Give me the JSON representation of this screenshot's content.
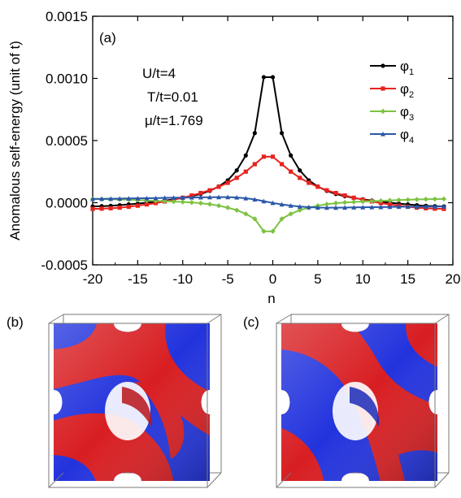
{
  "chart_data": [
    {
      "panel_label": "(a)",
      "type": "line",
      "xlabel": "n",
      "ylabel": "Anomalous self-energy (unit of t)",
      "xlim": [
        -20,
        20
      ],
      "ylim": [
        -0.0005,
        0.0015
      ],
      "xticks": [
        "-20",
        "-15",
        "-10",
        "-5",
        "0",
        "5",
        "10",
        "15",
        "20"
      ],
      "yticks": [
        "-0.0005",
        "0.0000",
        "0.0005",
        "0.0010",
        "0.0015"
      ],
      "ytick_values": [
        -0.0005,
        0.0,
        0.0005,
        0.001,
        0.0015
      ],
      "xtick_values": [
        -20,
        -15,
        -10,
        -5,
        0,
        5,
        10,
        15,
        20
      ],
      "annotations": [
        "U/t=4",
        "T/t=0.01",
        "μ/t=1.769"
      ],
      "grid": false,
      "legend_position": "right",
      "x": [
        -20,
        -19,
        -18,
        -17,
        -16,
        -15,
        -14,
        -13,
        -12,
        -11,
        -10,
        -9,
        -8,
        -7,
        -6,
        -5,
        -4,
        -3,
        -2,
        -1,
        0,
        1,
        2,
        3,
        4,
        5,
        6,
        7,
        8,
        9,
        10,
        11,
        12,
        13,
        14,
        15,
        16,
        17,
        18,
        19
      ],
      "series": [
        {
          "name": "φ1",
          "subscript": "1",
          "color": "#000000",
          "marker": "circle",
          "values": [
            -3e-05,
            -2.8e-05,
            -2.5e-05,
            -2e-05,
            -1.4e-05,
            -7e-06,
            0.0,
            8e-06,
            1.7e-05,
            2.7e-05,
            3.8e-05,
            5.2e-05,
            7e-05,
            9.5e-05,
            0.00013,
            0.00018,
            0.00026,
            0.00038,
            0.00056,
            0.00101,
            0.00101,
            0.00056,
            0.00038,
            0.00026,
            0.00018,
            0.00013,
            9.5e-05,
            7e-05,
            5.2e-05,
            3.8e-05,
            2.7e-05,
            1.7e-05,
            8e-06,
            0.0,
            -7e-06,
            -1.4e-05,
            -2e-05,
            -2.5e-05,
            -2.8e-05,
            -3e-05
          ]
        },
        {
          "name": "φ2",
          "subscript": "2",
          "color": "#e8231f",
          "marker": "square",
          "values": [
            -5e-05,
            -4.8e-05,
            -4.5e-05,
            -4e-05,
            -3.3e-05,
            -2.4e-05,
            -1.4e-05,
            -3e-06,
            1e-05,
            2.4e-05,
            4e-05,
            5.8e-05,
            7.8e-05,
            0.0001,
            0.000128,
            0.00016,
            0.0002,
            0.00025,
            0.00031,
            0.00037,
            0.00037,
            0.00031,
            0.00025,
            0.0002,
            0.00016,
            0.000128,
            0.0001,
            7.8e-05,
            5.8e-05,
            4e-05,
            2.4e-05,
            1e-05,
            -3e-06,
            -1.4e-05,
            -2.4e-05,
            -3.3e-05,
            -4e-05,
            -4.5e-05,
            -4.8e-05,
            -5e-05
          ]
        },
        {
          "name": "φ3",
          "subscript": "3",
          "color": "#7dc242",
          "marker": "diamond",
          "values": [
            3e-05,
            2.9e-05,
            2.8e-05,
            2.6e-05,
            2.4e-05,
            2.1e-05,
            1.8e-05,
            1.5e-05,
            1.2e-05,
            9e-06,
            6e-06,
            2e-06,
            -4e-06,
            -1.2e-05,
            -2.4e-05,
            -4e-05,
            -6e-05,
            -9e-05,
            -0.00013,
            -0.00023,
            -0.00023,
            -0.00013,
            -9e-05,
            -6e-05,
            -4e-05,
            -2.4e-05,
            -1.2e-05,
            -4e-06,
            2e-06,
            6e-06,
            9e-06,
            1.2e-05,
            1.5e-05,
            1.8e-05,
            2.1e-05,
            2.4e-05,
            2.6e-05,
            2.8e-05,
            2.9e-05,
            3e-05
          ]
        },
        {
          "name": "φ4",
          "subscript": "4",
          "color": "#2a57a8",
          "marker": "triangle",
          "values": [
            3e-05,
            3.1e-05,
            3.2e-05,
            3.3e-05,
            3.4e-05,
            3.5e-05,
            3.6e-05,
            3.7e-05,
            3.9e-05,
            4e-05,
            4.1e-05,
            4.2e-05,
            4.3e-05,
            4.4e-05,
            4.5e-05,
            4.5e-05,
            4.2e-05,
            3.6e-05,
            2.6e-05,
            1.2e-05,
            -2e-06,
            -1.4e-05,
            -2.4e-05,
            -3.1e-05,
            -3.6e-05,
            -3.9e-05,
            -4e-05,
            -4e-05,
            -3.9e-05,
            -3.8e-05,
            -3.7e-05,
            -3.6e-05,
            -3.5e-05,
            -3.4e-05,
            -3.3e-05,
            -3.2e-05,
            -3.2e-05,
            -3.1e-05,
            -3.1e-05,
            -3e-05
          ]
        }
      ]
    }
  ],
  "panels": {
    "b_label": "(b)",
    "c_label": "(c)",
    "colors": {
      "blue": "#2233dd",
      "red": "#d81e22",
      "edge": "#707070"
    }
  }
}
